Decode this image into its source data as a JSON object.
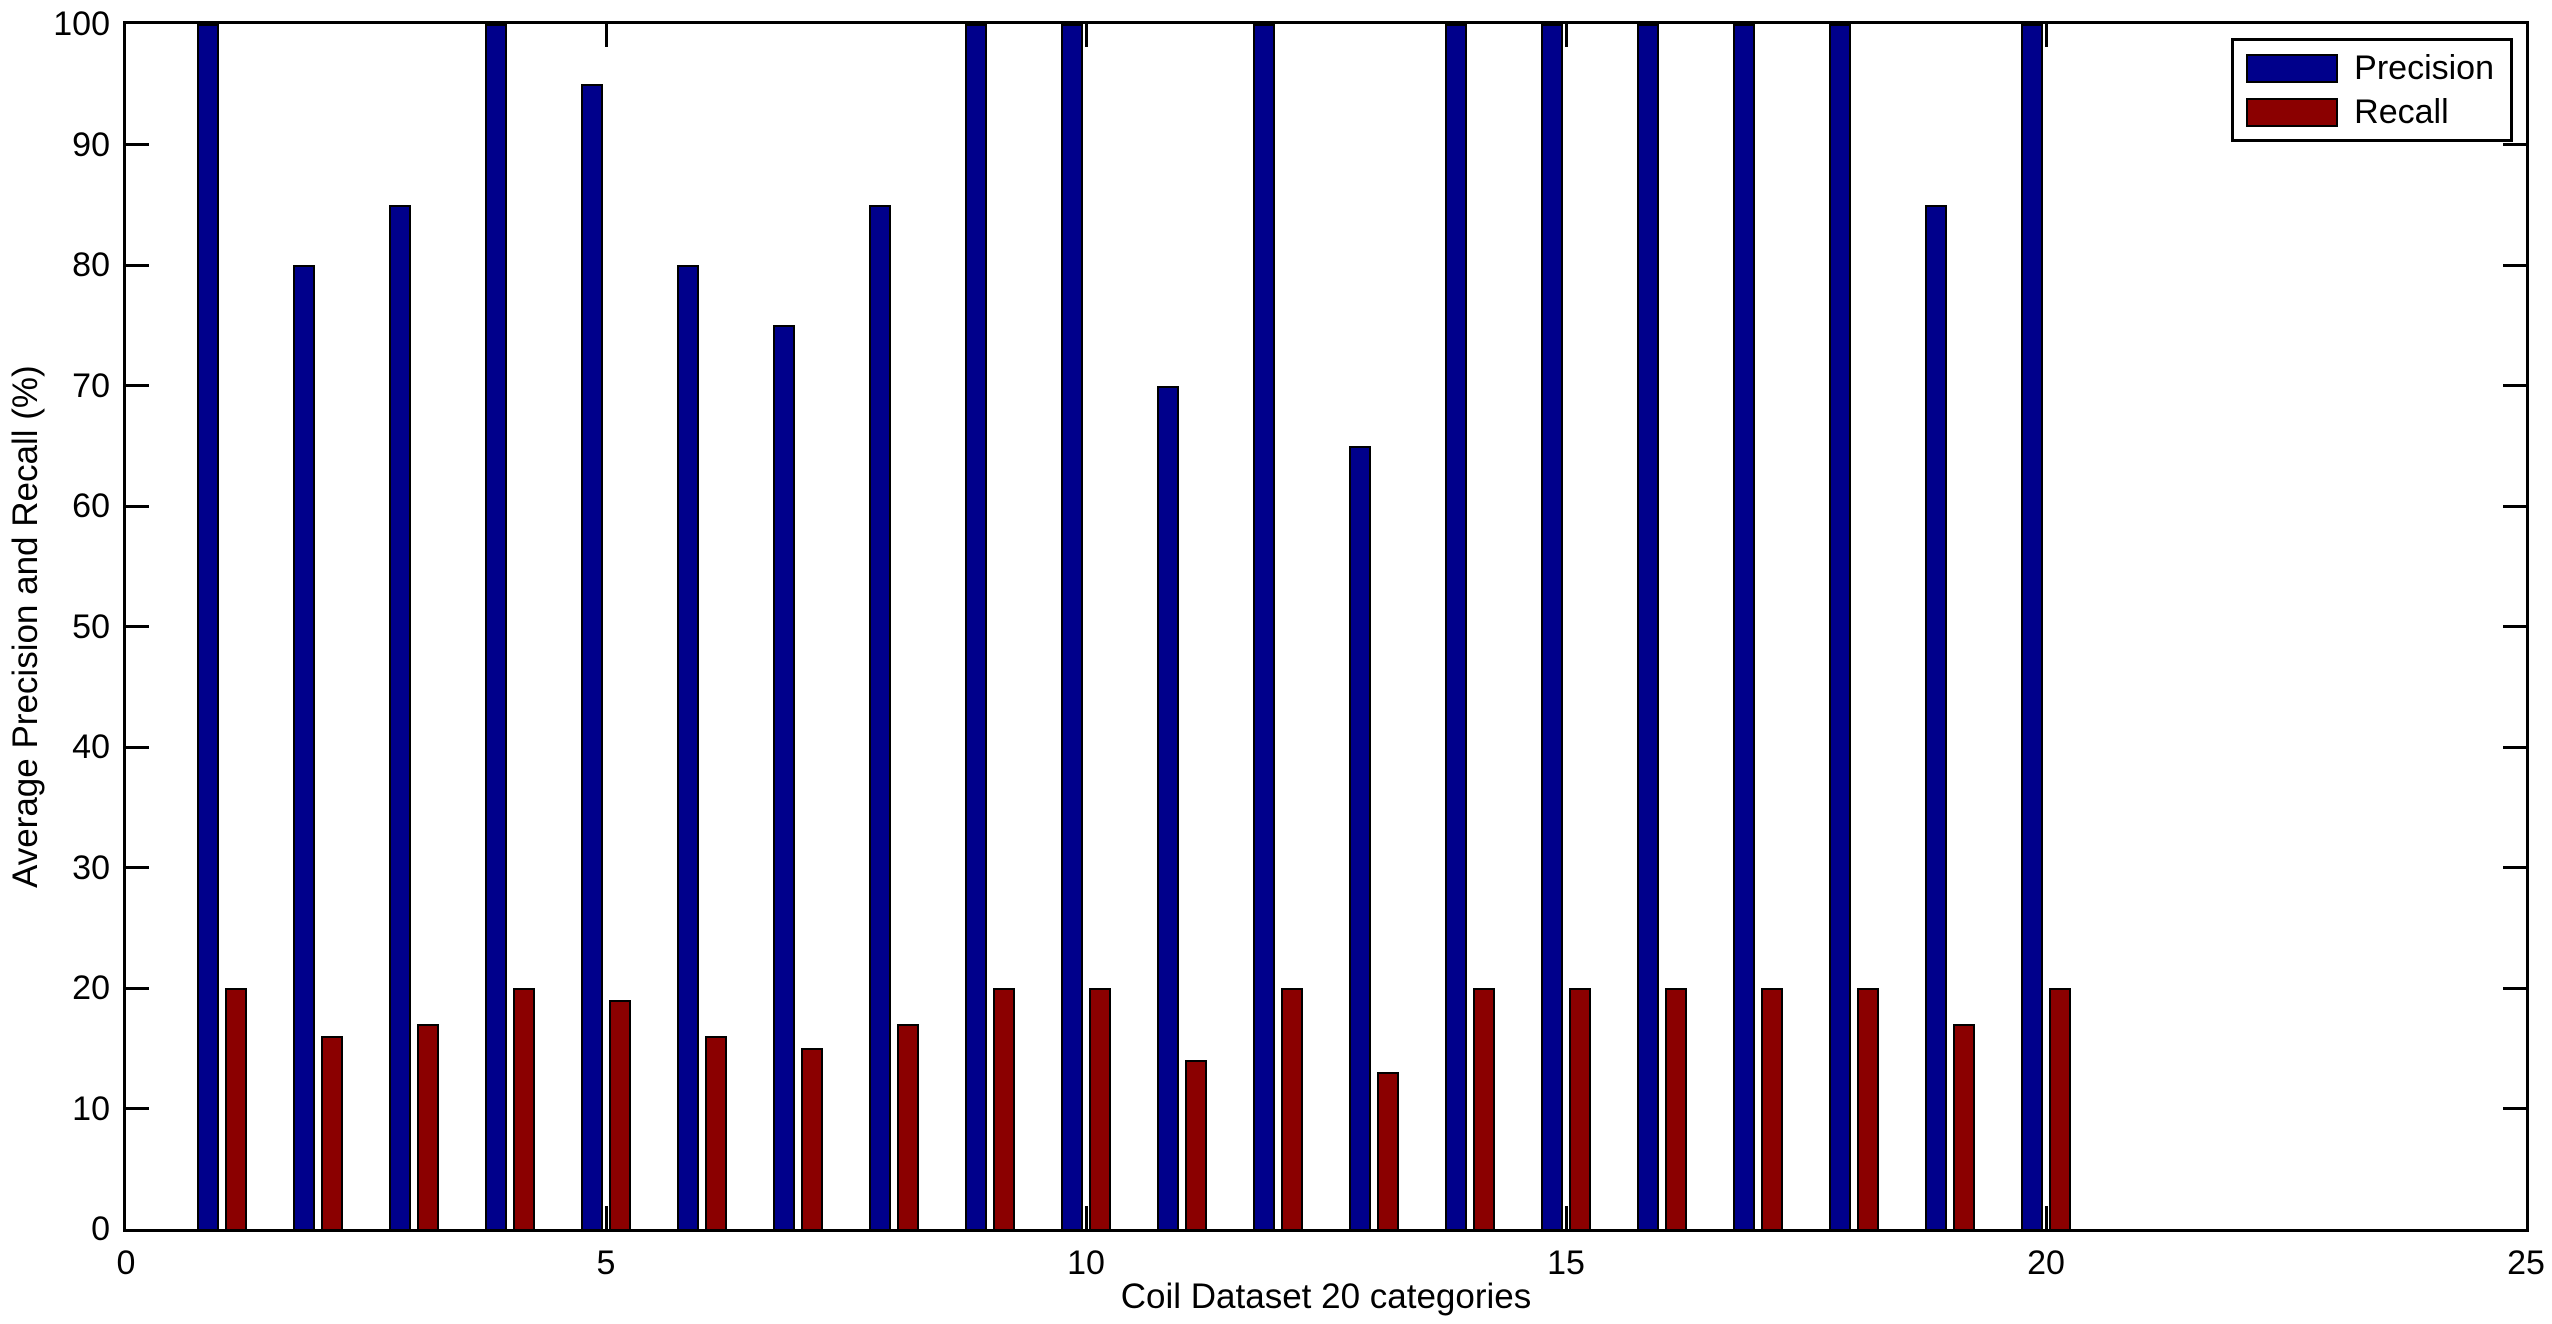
{
  "figure": {
    "background_color": "#ffffff",
    "axis_color": "#000000"
  },
  "chart_data": {
    "type": "bar",
    "title": "",
    "xlabel": "Coil Dataset 20 categories",
    "ylabel": "Average Precision and Recall (%)",
    "categories": [
      1,
      2,
      3,
      4,
      5,
      6,
      7,
      8,
      9,
      10,
      11,
      12,
      13,
      14,
      15,
      16,
      17,
      18,
      19,
      20
    ],
    "series": [
      {
        "name": "Precision",
        "color": "#00008B",
        "values": [
          100,
          80,
          85,
          100,
          95,
          80,
          75,
          85,
          100,
          100,
          70,
          100,
          65,
          100,
          100,
          100,
          100,
          100,
          85,
          100
        ]
      },
      {
        "name": "Recall",
        "color": "#8B0000",
        "values": [
          20,
          16,
          17,
          20,
          19,
          16,
          15,
          17,
          20,
          20,
          14,
          20,
          13,
          20,
          20,
          20,
          20,
          20,
          17,
          20
        ]
      }
    ],
    "xlim": [
      0,
      25
    ],
    "ylim": [
      0,
      100
    ],
    "xticks": [
      0,
      5,
      10,
      15,
      20,
      25
    ],
    "yticks": [
      0,
      10,
      20,
      30,
      40,
      50,
      60,
      70,
      80,
      90,
      100
    ],
    "grid": false,
    "bar_edge_color": "#000000",
    "legend_position": "northeast"
  },
  "legend": {
    "items": [
      {
        "label": "Precision",
        "color": "#00008B"
      },
      {
        "label": "Recall",
        "color": "#8B0000"
      }
    ]
  }
}
